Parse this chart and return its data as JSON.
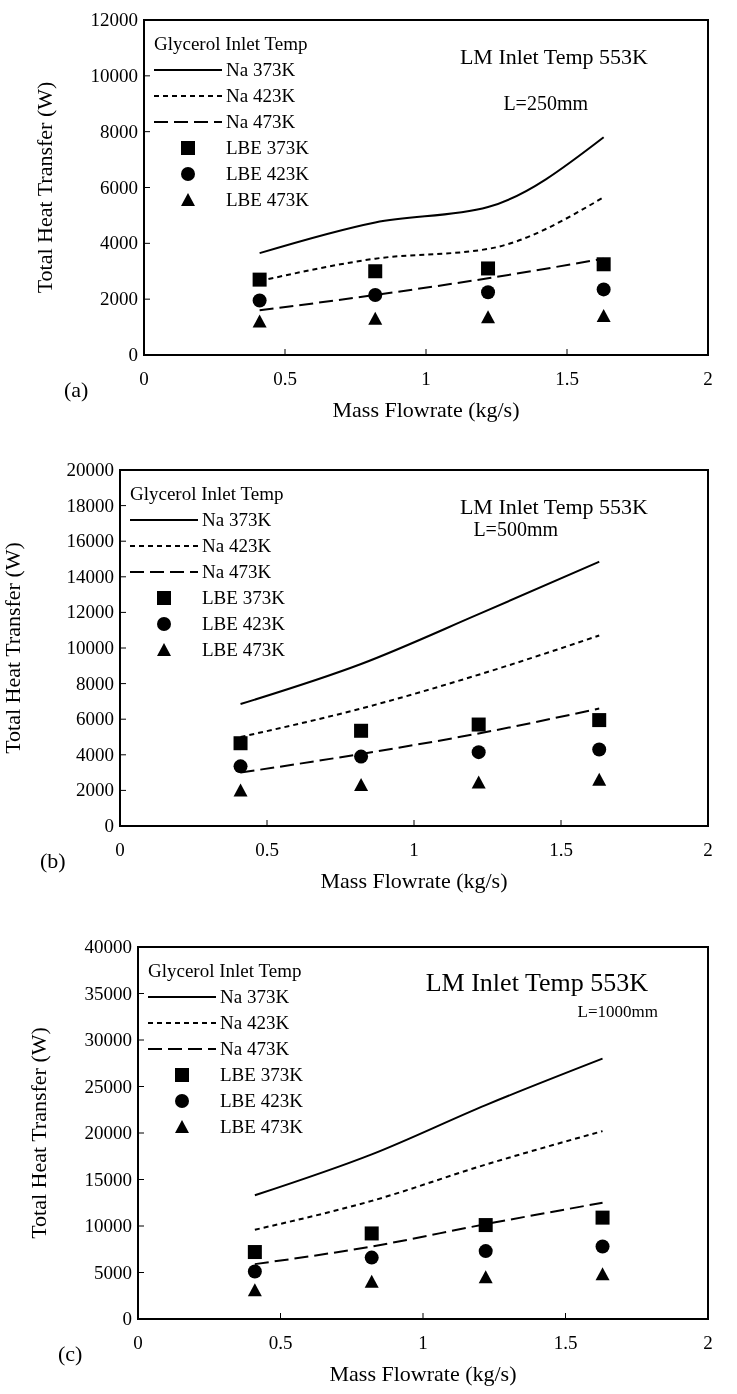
{
  "chart_data": [
    {
      "type": "line",
      "xlabel": "Mass Flowrate (kg/s)",
      "ylabel": "Total Heat Transfer (W)",
      "legend_title": "Glycerol Inlet Temp",
      "legend": "top left",
      "annotations": [
        "LM Inlet Temp 553K",
        "L=250mm",
        "(a)"
      ],
      "xlim": [
        0,
        2
      ],
      "xticks": [
        0,
        0.5,
        1,
        1.5,
        2
      ],
      "ylim": [
        0,
        12000
      ],
      "yticks": [
        0,
        2000,
        4000,
        6000,
        8000,
        10000,
        12000
      ],
      "x": [
        0.41,
        0.82,
        1.22,
        1.63
      ],
      "series": [
        {
          "name": "Na 373K",
          "type": "line",
          "color": "#000000",
          "line_style": "solid",
          "values": [
            3650,
            4750,
            5300,
            7800
          ]
        },
        {
          "name": "Na 423K",
          "type": "line",
          "color": "#000000",
          "line_style": "dotted",
          "values": [
            2650,
            3450,
            3800,
            5650
          ]
        },
        {
          "name": "Na 473K",
          "type": "line",
          "color": "#000000",
          "line_style": "dashed",
          "values": [
            1600,
            2150,
            2750,
            3450
          ]
        },
        {
          "name": "LBE 373K",
          "type": "scatter",
          "color": "#000000",
          "marker": "square",
          "values": [
            2700,
            3000,
            3100,
            3250
          ]
        },
        {
          "name": "LBE 423K",
          "type": "scatter",
          "color": "#000000",
          "marker": "circle",
          "values": [
            1950,
            2150,
            2250,
            2350
          ]
        },
        {
          "name": "LBE 473K",
          "type": "scatter",
          "color": "#000000",
          "marker": "triangle",
          "values": [
            1200,
            1300,
            1350,
            1400
          ]
        }
      ]
    },
    {
      "type": "line",
      "xlabel": "Mass Flowrate (kg/s)",
      "ylabel": "Total Heat Transfer (W)",
      "legend_title": "Glycerol Inlet Temp",
      "legend": "top left",
      "annotations": [
        "LM Inlet Temp 553K",
        "L=500mm",
        "(b)"
      ],
      "xlim": [
        0,
        2
      ],
      "xticks": [
        0,
        0.5,
        1,
        1.5,
        2
      ],
      "ylim": [
        0,
        20000
      ],
      "yticks": [
        0,
        2000,
        4000,
        6000,
        8000,
        10000,
        12000,
        14000,
        16000,
        18000,
        20000
      ],
      "x": [
        0.41,
        0.82,
        1.22,
        1.63
      ],
      "series": [
        {
          "name": "Na 373K",
          "type": "line",
          "color": "#000000",
          "line_style": "solid",
          "values": [
            6850,
            9100,
            11900,
            14850
          ]
        },
        {
          "name": "Na 423K",
          "type": "line",
          "color": "#000000",
          "line_style": "dotted",
          "values": [
            5000,
            6600,
            8500,
            10700
          ]
        },
        {
          "name": "Na 473K",
          "type": "line",
          "color": "#000000",
          "line_style": "dashed",
          "values": [
            3000,
            4050,
            5200,
            6600
          ]
        },
        {
          "name": "LBE 373K",
          "type": "scatter",
          "color": "#000000",
          "marker": "square",
          "values": [
            4650,
            5350,
            5700,
            5950
          ]
        },
        {
          "name": "LBE 423K",
          "type": "scatter",
          "color": "#000000",
          "marker": "circle",
          "values": [
            3350,
            3900,
            4150,
            4300
          ]
        },
        {
          "name": "LBE 473K",
          "type": "scatter",
          "color": "#000000",
          "marker": "triangle",
          "values": [
            2000,
            2300,
            2450,
            2600
          ]
        }
      ]
    },
    {
      "type": "line",
      "xlabel": "Mass Flowrate (kg/s)",
      "ylabel": "Total Heat Transfer (W)",
      "legend_title": "Glycerol Inlet Temp",
      "legend": "top left",
      "annotations": [
        "LM Inlet Temp 553K",
        "L=1000mm",
        "(c)"
      ],
      "xlim": [
        0,
        2
      ],
      "xticks": [
        0,
        0.5,
        1,
        1.5,
        2
      ],
      "ylim": [
        0,
        40000
      ],
      "yticks": [
        0,
        5000,
        10000,
        15000,
        20000,
        25000,
        30000,
        35000,
        40000
      ],
      "x": [
        0.41,
        0.82,
        1.22,
        1.63
      ],
      "series": [
        {
          "name": "Na 373K",
          "type": "line",
          "color": "#000000",
          "line_style": "solid",
          "values": [
            13300,
            17700,
            23000,
            28000
          ]
        },
        {
          "name": "Na 423K",
          "type": "line",
          "color": "#000000",
          "line_style": "dotted",
          "values": [
            9600,
            12700,
            16600,
            20200
          ]
        },
        {
          "name": "Na 473K",
          "type": "line",
          "color": "#000000",
          "line_style": "dashed",
          "values": [
            5900,
            7800,
            10200,
            12500
          ]
        },
        {
          "name": "LBE 373K",
          "type": "scatter",
          "color": "#000000",
          "marker": "square",
          "values": [
            7200,
            9200,
            10100,
            10900
          ]
        },
        {
          "name": "LBE 423K",
          "type": "scatter",
          "color": "#000000",
          "marker": "circle",
          "values": [
            5100,
            6600,
            7300,
            7800
          ]
        },
        {
          "name": "LBE 473K",
          "type": "scatter",
          "color": "#000000",
          "marker": "triangle",
          "values": [
            3100,
            4000,
            4500,
            4800
          ]
        }
      ]
    }
  ]
}
